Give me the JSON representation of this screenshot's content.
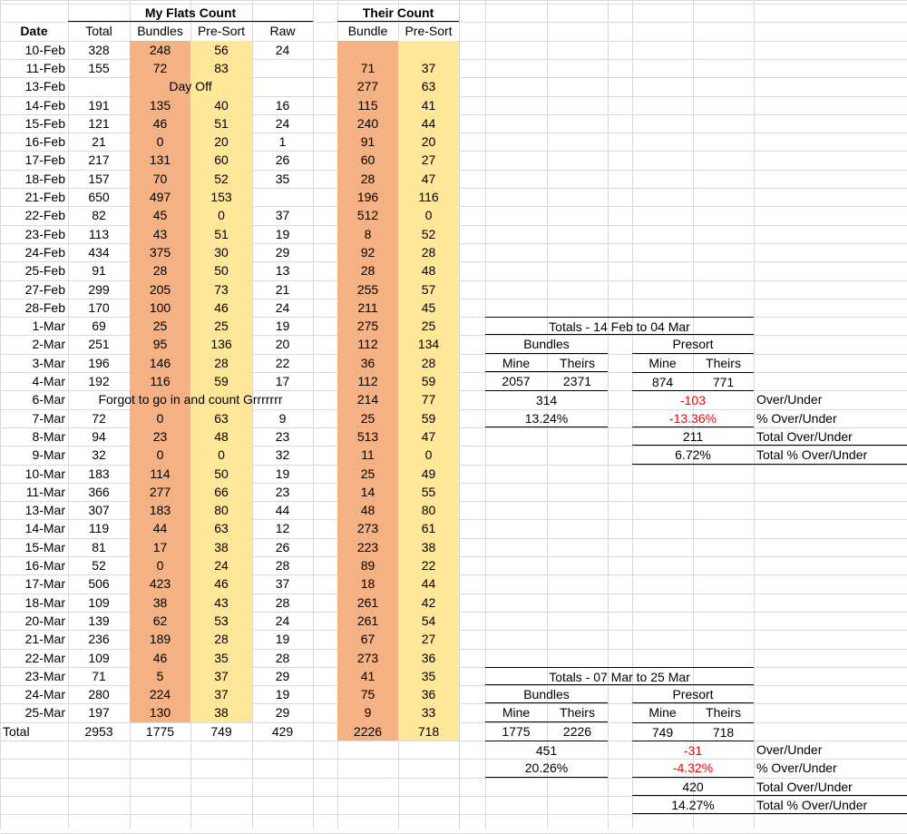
{
  "headers": {
    "my_flats": "My Flats Count",
    "their_count": "Their Count",
    "date": "Date",
    "total": "Total",
    "bundles": "Bundles",
    "presort": "Pre-Sort",
    "raw": "Raw",
    "bundle": "Bundle",
    "their_presort": "Pre-Sort"
  },
  "rows": [
    {
      "date": "10-Feb",
      "total": "328",
      "bundles": "248",
      "presort": "56",
      "raw": "24",
      "t_bundle": "",
      "t_presort": ""
    },
    {
      "date": "11-Feb",
      "total": "155",
      "bundles": "72",
      "presort": "83",
      "raw": "",
      "t_bundle": "71",
      "t_presort": "37"
    },
    {
      "date": "13-Feb",
      "note": "Day Off",
      "t_bundle": "277",
      "t_presort": "63"
    },
    {
      "date": "14-Feb",
      "total": "191",
      "bundles": "135",
      "presort": "40",
      "raw": "16",
      "t_bundle": "115",
      "t_presort": "41"
    },
    {
      "date": "15-Feb",
      "total": "121",
      "bundles": "46",
      "presort": "51",
      "raw": "24",
      "t_bundle": "240",
      "t_presort": "44"
    },
    {
      "date": "16-Feb",
      "total": "21",
      "bundles": "0",
      "presort": "20",
      "raw": "1",
      "t_bundle": "91",
      "t_presort": "20"
    },
    {
      "date": "17-Feb",
      "total": "217",
      "bundles": "131",
      "presort": "60",
      "raw": "26",
      "t_bundle": "60",
      "t_presort": "27"
    },
    {
      "date": "18-Feb",
      "total": "157",
      "bundles": "70",
      "presort": "52",
      "raw": "35",
      "t_bundle": "28",
      "t_presort": "47"
    },
    {
      "date": "21-Feb",
      "total": "650",
      "bundles": "497",
      "presort": "153",
      "raw": "",
      "t_bundle": "196",
      "t_presort": "116"
    },
    {
      "date": "22-Feb",
      "total": "82",
      "bundles": "45",
      "presort": "0",
      "raw": "37",
      "t_bundle": "512",
      "t_presort": "0"
    },
    {
      "date": "23-Feb",
      "total": "113",
      "bundles": "43",
      "presort": "51",
      "raw": "19",
      "t_bundle": "8",
      "t_presort": "52"
    },
    {
      "date": "24-Feb",
      "total": "434",
      "bundles": "375",
      "presort": "30",
      "raw": "29",
      "t_bundle": "92",
      "t_presort": "28"
    },
    {
      "date": "25-Feb",
      "total": "91",
      "bundles": "28",
      "presort": "50",
      "raw": "13",
      "t_bundle": "28",
      "t_presort": "48"
    },
    {
      "date": "27-Feb",
      "total": "299",
      "bundles": "205",
      "presort": "73",
      "raw": "21",
      "t_bundle": "255",
      "t_presort": "57"
    },
    {
      "date": "28-Feb",
      "total": "170",
      "bundles": "100",
      "presort": "46",
      "raw": "24",
      "t_bundle": "211",
      "t_presort": "45"
    },
    {
      "date": "1-Mar",
      "total": "69",
      "bundles": "25",
      "presort": "25",
      "raw": "19",
      "t_bundle": "275",
      "t_presort": "25"
    },
    {
      "date": "2-Mar",
      "total": "251",
      "bundles": "95",
      "presort": "136",
      "raw": "20",
      "t_bundle": "112",
      "t_presort": "134"
    },
    {
      "date": "3-Mar",
      "total": "196",
      "bundles": "146",
      "presort": "28",
      "raw": "22",
      "t_bundle": "36",
      "t_presort": "28"
    },
    {
      "date": "4-Mar",
      "total": "192",
      "bundles": "116",
      "presort": "59",
      "raw": "17",
      "t_bundle": "112",
      "t_presort": "59"
    },
    {
      "date": "6-Mar",
      "note": "Forgot to go in and count Grrrrrrr",
      "t_bundle": "214",
      "t_presort": "77"
    },
    {
      "date": "7-Mar",
      "total": "72",
      "bundles": "0",
      "presort": "63",
      "raw": "9",
      "t_bundle": "25",
      "t_presort": "59"
    },
    {
      "date": "8-Mar",
      "total": "94",
      "bundles": "23",
      "presort": "48",
      "raw": "23",
      "t_bundle": "513",
      "t_presort": "47"
    },
    {
      "date": "9-Mar",
      "total": "32",
      "bundles": "0",
      "presort": "0",
      "raw": "32",
      "t_bundle": "11",
      "t_presort": "0"
    },
    {
      "date": "10-Mar",
      "total": "183",
      "bundles": "114",
      "presort": "50",
      "raw": "19",
      "t_bundle": "25",
      "t_presort": "49"
    },
    {
      "date": "11-Mar",
      "total": "366",
      "bundles": "277",
      "presort": "66",
      "raw": "23",
      "t_bundle": "14",
      "t_presort": "55"
    },
    {
      "date": "13-Mar",
      "total": "307",
      "bundles": "183",
      "presort": "80",
      "raw": "44",
      "t_bundle": "48",
      "t_presort": "80"
    },
    {
      "date": "14-Mar",
      "total": "119",
      "bundles": "44",
      "presort": "63",
      "raw": "12",
      "t_bundle": "273",
      "t_presort": "61"
    },
    {
      "date": "15-Mar",
      "total": "81",
      "bundles": "17",
      "presort": "38",
      "raw": "26",
      "t_bundle": "223",
      "t_presort": "38"
    },
    {
      "date": "16-Mar",
      "total": "52",
      "bundles": "0",
      "presort": "24",
      "raw": "28",
      "t_bundle": "89",
      "t_presort": "22"
    },
    {
      "date": "17-Mar",
      "total": "506",
      "bundles": "423",
      "presort": "46",
      "raw": "37",
      "t_bundle": "18",
      "t_presort": "44"
    },
    {
      "date": "18-Mar",
      "total": "109",
      "bundles": "38",
      "presort": "43",
      "raw": "28",
      "t_bundle": "261",
      "t_presort": "42"
    },
    {
      "date": "20-Mar",
      "total": "139",
      "bundles": "62",
      "presort": "53",
      "raw": "24",
      "t_bundle": "261",
      "t_presort": "54"
    },
    {
      "date": "21-Mar",
      "total": "236",
      "bundles": "189",
      "presort": "28",
      "raw": "19",
      "t_bundle": "67",
      "t_presort": "27"
    },
    {
      "date": "22-Mar",
      "total": "109",
      "bundles": "46",
      "presort": "35",
      "raw": "28",
      "t_bundle": "273",
      "t_presort": "36"
    },
    {
      "date": "23-Mar",
      "total": "71",
      "bundles": "5",
      "presort": "37",
      "raw": "29",
      "t_bundle": "41",
      "t_presort": "35"
    },
    {
      "date": "24-Mar",
      "total": "280",
      "bundles": "224",
      "presort": "37",
      "raw": "19",
      "t_bundle": "75",
      "t_presort": "36"
    },
    {
      "date": "25-Mar",
      "total": "197",
      "bundles": "130",
      "presort": "38",
      "raw": "29",
      "t_bundle": "9",
      "t_presort": "33"
    }
  ],
  "totals_row": {
    "label": "Total",
    "total": "2953",
    "bundles": "1775",
    "presort": "749",
    "raw": "429",
    "t_bundle": "2226",
    "t_presort": "718"
  },
  "summary1": {
    "title": "Totals - 14 Feb to 04 Mar",
    "bundles_label": "Bundles",
    "presort_label": "Presort",
    "mine": "Mine",
    "theirs": "Theirs",
    "b_mine": "2057",
    "b_theirs": "2371",
    "p_mine": "874",
    "p_theirs": "771",
    "b_diff": "314",
    "p_diff": "-103",
    "b_pct": "13.24%",
    "p_pct": "-13.36%",
    "total_diff": "211",
    "total_pct": "6.72%",
    "lbl_over": "Over/Under",
    "lbl_pct": "% Over/Under",
    "lbl_total": "Total Over/Under",
    "lbl_total_pct": "Total % Over/Under"
  },
  "summary2": {
    "title": "Totals - 07 Mar to 25 Mar",
    "bundles_label": "Bundles",
    "presort_label": "Presort",
    "mine": "Mine",
    "theirs": "Theirs",
    "b_mine": "1775",
    "b_theirs": "2226",
    "p_mine": "749",
    "p_theirs": "718",
    "b_diff": "451",
    "p_diff": "-31",
    "b_pct": "20.26%",
    "p_pct": "-4.32%",
    "total_diff": "420",
    "total_pct": "14.27%",
    "lbl_over": "Over/Under",
    "lbl_pct": "% Over/Under",
    "lbl_total": "Total Over/Under",
    "lbl_total_pct": "Total % Over/Under"
  },
  "colors": {
    "bundle_fill": "#f4b183",
    "presort_fill": "#ffe699",
    "negative": "#ff0000",
    "grid": "#d9d9d9"
  }
}
